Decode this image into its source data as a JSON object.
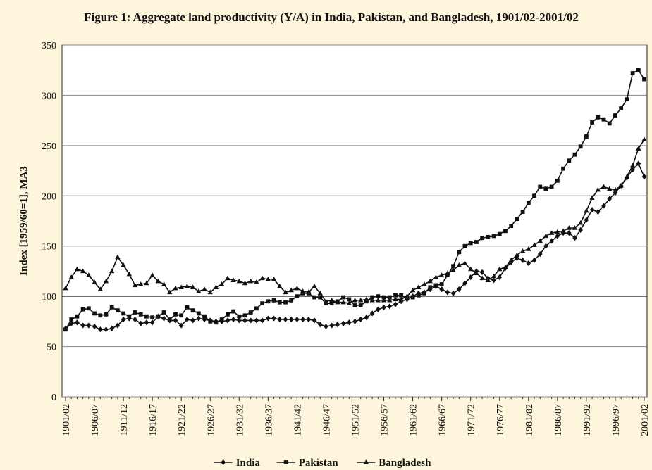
{
  "chart_data": {
    "type": "line",
    "title": "Figure 1: Aggregate land productivity (Y/A) in India, Pakistan, and Bangladesh, 1901/02-2001/02",
    "y_label": "Index [1959/60=1], MA3",
    "categories": [
      "1901/02",
      null,
      null,
      null,
      null,
      "1906/07",
      null,
      null,
      null,
      null,
      "1911/12",
      null,
      null,
      null,
      null,
      "1916/17",
      null,
      null,
      null,
      null,
      "1921/22",
      null,
      null,
      null,
      null,
      "1926/27",
      null,
      null,
      null,
      null,
      "1931/32",
      null,
      null,
      null,
      null,
      "1936/37",
      null,
      null,
      null,
      null,
      "1941/42",
      null,
      null,
      null,
      null,
      "1946/47",
      null,
      null,
      null,
      null,
      "1951/52",
      null,
      null,
      null,
      null,
      "1956/57",
      null,
      null,
      null,
      null,
      "1961/62",
      null,
      null,
      null,
      null,
      "1966/67",
      null,
      null,
      null,
      null,
      "1971/72",
      null,
      null,
      null,
      null,
      "1976/77",
      null,
      null,
      null,
      null,
      "1981/82",
      null,
      null,
      null,
      null,
      "1986/87",
      null,
      null,
      null,
      null,
      "1991/92",
      null,
      null,
      null,
      null,
      "1996/97",
      null,
      null,
      null,
      null,
      "2001/02"
    ],
    "series": [
      {
        "name": "India",
        "marker": "diamond",
        "color": "#111111",
        "values": [
          68,
          73,
          74,
          71,
          71,
          70,
          67,
          67,
          68,
          71,
          77,
          78,
          77,
          73,
          74,
          74,
          80,
          78,
          76,
          76,
          71,
          77,
          76,
          78,
          77,
          76,
          75,
          75,
          76,
          77,
          76,
          76,
          76,
          76,
          76,
          78,
          78,
          77,
          77,
          77,
          77,
          77,
          77,
          76,
          72,
          70,
          71,
          72,
          73,
          74,
          75,
          77,
          79,
          83,
          87,
          89,
          90,
          92,
          95,
          97,
          100,
          103,
          104,
          107,
          110,
          107,
          104,
          103,
          107,
          113,
          119,
          125,
          124,
          118,
          116,
          119,
          128,
          134,
          138,
          136,
          133,
          136,
          142,
          150,
          155,
          160,
          163,
          163,
          158,
          166,
          176,
          186,
          184,
          190,
          197,
          203,
          210,
          218,
          226,
          232,
          219
        ]
      },
      {
        "name": "Pakistan",
        "marker": "square",
        "color": "#111111",
        "values": [
          67,
          77,
          80,
          87,
          88,
          83,
          81,
          82,
          89,
          86,
          83,
          80,
          84,
          82,
          80,
          79,
          80,
          84,
          77,
          82,
          81,
          89,
          86,
          83,
          80,
          75,
          74,
          77,
          82,
          85,
          80,
          81,
          84,
          88,
          93,
          95,
          96,
          94,
          94,
          96,
          100,
          103,
          103,
          99,
          99,
          93,
          93,
          95,
          99,
          97,
          91,
          91,
          95,
          99,
          100,
          99,
          99,
          101,
          101,
          98,
          99,
          101,
          103,
          109,
          111,
          112,
          121,
          130,
          144,
          150,
          153,
          154,
          158,
          159,
          160,
          162,
          165,
          170,
          177,
          184,
          193,
          200,
          209,
          207,
          209,
          215,
          227,
          235,
          241,
          249,
          259,
          273,
          278,
          276,
          272,
          280,
          287,
          296,
          322,
          325,
          316
        ]
      },
      {
        "name": "Bangladesh",
        "marker": "triangle",
        "color": "#111111",
        "values": [
          108,
          119,
          127,
          125,
          121,
          114,
          107,
          115,
          125,
          139,
          131,
          122,
          111,
          112,
          113,
          121,
          115,
          112,
          104,
          108,
          109,
          110,
          109,
          105,
          107,
          104,
          109,
          112,
          118,
          116,
          115,
          113,
          115,
          114,
          118,
          117,
          117,
          110,
          104,
          106,
          108,
          105,
          104,
          110,
          103,
          95,
          96,
          94,
          94,
          93,
          96,
          96,
          97,
          96,
          96,
          96,
          96,
          97,
          97,
          100,
          106,
          109,
          112,
          115,
          119,
          121,
          123,
          126,
          131,
          133,
          127,
          123,
          118,
          116,
          120,
          127,
          129,
          136,
          141,
          145,
          147,
          151,
          155,
          160,
          163,
          164,
          165,
          168,
          168,
          173,
          185,
          198,
          206,
          209,
          207,
          206,
          210,
          219,
          230,
          247,
          256
        ]
      }
    ],
    "ylim": [
      0,
      350
    ],
    "yticks": [
      0,
      50,
      100,
      150,
      200,
      250,
      300,
      350
    ],
    "grid": true,
    "legend": "bottom"
  }
}
